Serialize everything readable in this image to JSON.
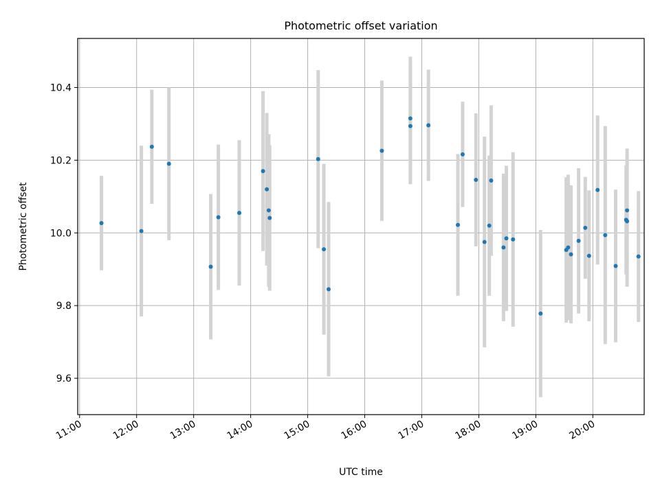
{
  "chart_data": {
    "type": "scatter",
    "title": "Photometric offset variation",
    "xlabel": "UTC time",
    "ylabel": "Photometric offset",
    "xlim": [
      "10:58",
      "20:54"
    ],
    "ylim": [
      9.5,
      10.535
    ],
    "grid": true,
    "x_ticks": [
      "11:00",
      "12:00",
      "13:00",
      "14:00",
      "15:00",
      "16:00",
      "17:00",
      "18:00",
      "19:00",
      "20:00"
    ],
    "y_ticks": [
      "9.6",
      "9.8",
      "10.0",
      "10.2",
      "10.4"
    ],
    "colors": {
      "points": "#1f77b4",
      "errorbars": "#d3d3d3",
      "grid": "#b0b0b0"
    },
    "series": [
      {
        "x": [
          "11:23",
          "12:05",
          "12:16",
          "12:34",
          "13:18",
          "13:26",
          "13:48",
          "14:13",
          "14:17",
          "14:19",
          "14:20",
          "15:11",
          "15:17",
          "15:22",
          "16:18",
          "16:48",
          "16:48",
          "17:07",
          "17:38",
          "17:43",
          "17:57",
          "18:06",
          "18:11",
          "18:13",
          "18:26",
          "18:29",
          "18:36",
          "19:05",
          "19:32",
          "19:34",
          "19:37",
          "19:45",
          "19:52",
          "19:56",
          "20:05",
          "20:13",
          "20:24",
          "20:35",
          "20:36",
          "20:36",
          "20:48"
        ],
        "y": [
          10.027,
          10.005,
          10.237,
          10.19,
          9.907,
          10.043,
          10.055,
          10.17,
          10.12,
          10.062,
          10.041,
          10.203,
          9.955,
          9.845,
          10.226,
          10.315,
          10.294,
          10.296,
          10.022,
          10.216,
          10.146,
          9.975,
          10.02,
          10.144,
          9.96,
          9.985,
          9.982,
          9.778,
          9.953,
          9.96,
          9.941,
          9.978,
          10.014,
          9.937,
          10.118,
          9.994,
          9.909,
          10.036,
          10.062,
          10.032,
          9.935
        ],
        "yerr": [
          0.13,
          0.235,
          0.157,
          0.21,
          0.2,
          0.2,
          0.2,
          0.22,
          0.21,
          0.21,
          0.2,
          0.245,
          0.235,
          0.24,
          0.193,
          0.17,
          0.16,
          0.153,
          0.195,
          0.145,
          0.183,
          0.29,
          0.193,
          0.207,
          0.203,
          0.2,
          0.24,
          0.23,
          0.2,
          0.2,
          0.19,
          0.2,
          0.14,
          0.18,
          0.205,
          0.3,
          0.21,
          0.15,
          0.17,
          0.18,
          0.18
        ]
      }
    ]
  }
}
